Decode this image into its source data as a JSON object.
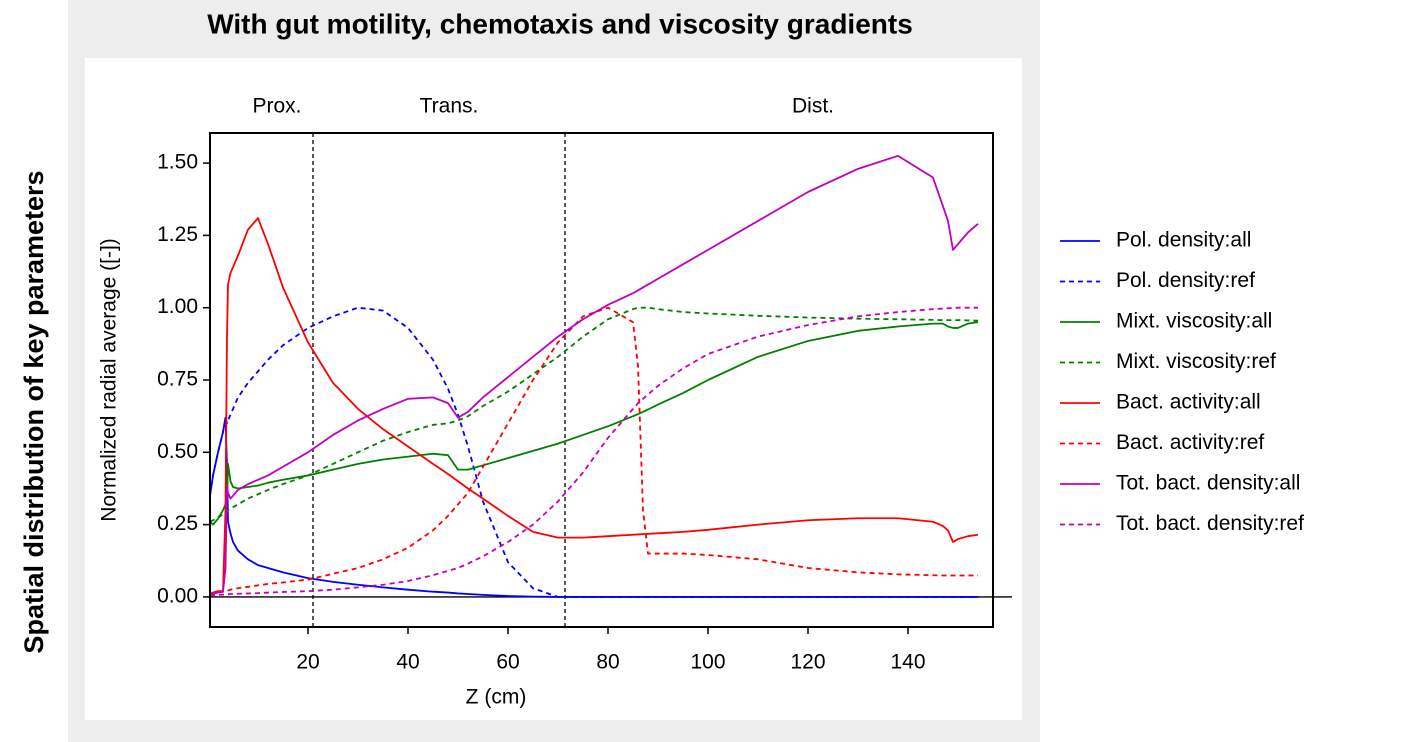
{
  "chart_data": {
    "type": "line",
    "title": "With gut motility, chemotaxis and viscosity gradients",
    "outer_ylabel": "Spatial distribution of key parameters",
    "xlabel": "Z (cm)",
    "ylabel": "Normalized radial average ([-])",
    "annotations": [
      {
        "text": "Prox.",
        "x": 13.8
      },
      {
        "text": "Trans.",
        "x": 48.2
      },
      {
        "text": "Dist.",
        "x": 121
      }
    ],
    "vlines": [
      21,
      71.4
    ],
    "hline": 0,
    "xlim": [
      0.4,
      157
    ],
    "ylim": [
      -0.104,
      1.604
    ],
    "xticks": [
      20,
      40,
      60,
      80,
      100,
      120,
      140
    ],
    "yticks": [
      {
        "value": 0,
        "label": "0.00"
      },
      {
        "value": 0.25,
        "label": "0.25"
      },
      {
        "value": 0.5,
        "label": "0.50"
      },
      {
        "value": 0.75,
        "label": "0.75"
      },
      {
        "value": 1,
        "label": "1.00"
      },
      {
        "value": 1.25,
        "label": "1.25"
      },
      {
        "value": 1.5,
        "label": "1.50"
      }
    ],
    "x": [
      0.4,
      1,
      2,
      3,
      3.5,
      3.8,
      4,
      4.5,
      5,
      6,
      8,
      10,
      12,
      15,
      20,
      25,
      30,
      35,
      40,
      45,
      48,
      50,
      52,
      55,
      60,
      65,
      70,
      75,
      80,
      85,
      86,
      87,
      88,
      90,
      95,
      100,
      110,
      120,
      130,
      138,
      145,
      147,
      148,
      149,
      150,
      152,
      154
    ],
    "series": [
      {
        "name": "Pol. density:all",
        "color": "#0000ff",
        "dashed": false,
        "values": [
          0.35,
          0.42,
          0.5,
          0.57,
          0.62,
          0.45,
          0.26,
          0.22,
          0.19,
          0.16,
          0.13,
          0.11,
          0.1,
          0.085,
          0.065,
          0.052,
          0.042,
          0.033,
          0.025,
          0.018,
          0.015,
          0.012,
          0.01,
          0.007,
          0.003,
          0.001,
          0,
          0,
          0,
          0,
          0,
          0,
          0,
          0,
          0,
          0,
          0,
          0,
          0,
          0,
          0,
          0,
          0,
          0,
          0,
          0,
          0
        ]
      },
      {
        "name": "Pol. density:ref",
        "color": "#0000ff",
        "dashed": true,
        "values": [
          0.35,
          0.42,
          0.5,
          0.57,
          0.62,
          0.6,
          0.61,
          0.63,
          0.65,
          0.69,
          0.74,
          0.78,
          0.82,
          0.87,
          0.93,
          0.97,
          1.0,
          0.99,
          0.93,
          0.82,
          0.72,
          0.63,
          0.52,
          0.33,
          0.12,
          0.03,
          0,
          0,
          0,
          0,
          0,
          0,
          0,
          0,
          0,
          0,
          0,
          0,
          0,
          0,
          0,
          0,
          0,
          0,
          0,
          0,
          0
        ]
      },
      {
        "name": "Mixt. viscosity:all",
        "color": "#008000",
        "dashed": false,
        "values": [
          0.26,
          0.25,
          0.27,
          0.3,
          0.32,
          0.35,
          0.46,
          0.4,
          0.38,
          0.375,
          0.38,
          0.385,
          0.395,
          0.405,
          0.42,
          0.44,
          0.46,
          0.475,
          0.485,
          0.495,
          0.49,
          0.44,
          0.44,
          0.455,
          0.48,
          0.505,
          0.53,
          0.56,
          0.59,
          0.625,
          0.632,
          0.64,
          0.648,
          0.665,
          0.705,
          0.75,
          0.83,
          0.885,
          0.92,
          0.935,
          0.945,
          0.945,
          0.935,
          0.93,
          0.93,
          0.945,
          0.95
        ]
      },
      {
        "name": "Mixt. viscosity:ref",
        "color": "#008000",
        "dashed": true,
        "values": [
          0.26,
          0.265,
          0.275,
          0.285,
          0.29,
          0.295,
          0.3,
          0.305,
          0.31,
          0.32,
          0.34,
          0.355,
          0.37,
          0.39,
          0.42,
          0.46,
          0.5,
          0.54,
          0.57,
          0.595,
          0.6,
          0.61,
          0.625,
          0.66,
          0.71,
          0.77,
          0.83,
          0.9,
          0.96,
          0.995,
          1.0,
          1.0,
          1.0,
          0.995,
          0.985,
          0.98,
          0.972,
          0.966,
          0.962,
          0.96,
          0.958,
          0.957,
          0.957,
          0.957,
          0.957,
          0.956,
          0.955
        ]
      },
      {
        "name": "Bact. activity:all",
        "color": "#ff0000",
        "dashed": false,
        "values": [
          0.01,
          0.015,
          0.02,
          0.02,
          0.3,
          0.9,
          1.08,
          1.12,
          1.14,
          1.18,
          1.27,
          1.31,
          1.22,
          1.07,
          0.88,
          0.74,
          0.65,
          0.58,
          0.52,
          0.46,
          0.425,
          0.4,
          0.375,
          0.34,
          0.28,
          0.225,
          0.205,
          0.205,
          0.21,
          0.215,
          0.216,
          0.217,
          0.218,
          0.22,
          0.225,
          0.232,
          0.25,
          0.265,
          0.272,
          0.272,
          0.26,
          0.245,
          0.23,
          0.19,
          0.2,
          0.21,
          0.215
        ]
      },
      {
        "name": "Bact. activity:ref",
        "color": "#ff0000",
        "dashed": true,
        "values": [
          0.01,
          0.012,
          0.015,
          0.018,
          0.02,
          0.02,
          0.022,
          0.025,
          0.027,
          0.03,
          0.035,
          0.04,
          0.045,
          0.05,
          0.06,
          0.08,
          0.1,
          0.13,
          0.17,
          0.23,
          0.28,
          0.32,
          0.36,
          0.45,
          0.6,
          0.75,
          0.88,
          0.97,
          1.0,
          0.95,
          0.8,
          0.3,
          0.15,
          0.15,
          0.15,
          0.145,
          0.13,
          0.1,
          0.085,
          0.078,
          0.075,
          0.074,
          0.074,
          0.074,
          0.074,
          0.074,
          0.074
        ]
      },
      {
        "name": "Tot. bact. density:all",
        "color": "#bf00bf",
        "dashed": false,
        "values": [
          0.01,
          0.012,
          0.015,
          0.018,
          0.1,
          0.38,
          0.36,
          0.34,
          0.35,
          0.37,
          0.39,
          0.405,
          0.42,
          0.45,
          0.5,
          0.56,
          0.61,
          0.65,
          0.685,
          0.69,
          0.67,
          0.62,
          0.64,
          0.69,
          0.76,
          0.83,
          0.9,
          0.96,
          1.01,
          1.05,
          1.06,
          1.07,
          1.08,
          1.1,
          1.15,
          1.2,
          1.3,
          1.4,
          1.48,
          1.525,
          1.45,
          1.35,
          1.3,
          1.2,
          1.22,
          1.26,
          1.29
        ]
      },
      {
        "name": "Tot. bact. density:ref",
        "color": "#bf00bf",
        "dashed": true,
        "values": [
          0.005,
          0.006,
          0.007,
          0.008,
          0.008,
          0.009,
          0.009,
          0.01,
          0.01,
          0.011,
          0.012,
          0.013,
          0.015,
          0.017,
          0.02,
          0.025,
          0.033,
          0.042,
          0.055,
          0.075,
          0.09,
          0.1,
          0.115,
          0.14,
          0.19,
          0.25,
          0.33,
          0.43,
          0.55,
          0.65,
          0.67,
          0.685,
          0.7,
          0.73,
          0.79,
          0.84,
          0.9,
          0.94,
          0.97,
          0.985,
          0.995,
          0.997,
          0.998,
          0.999,
          1.0,
          1.0,
          1.0
        ]
      }
    ]
  }
}
